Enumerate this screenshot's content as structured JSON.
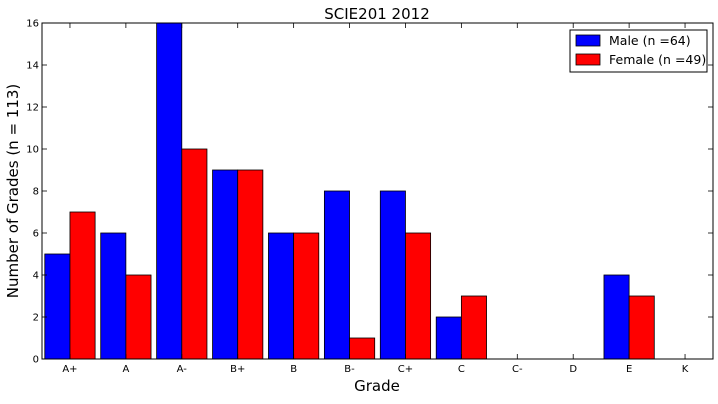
{
  "chart_data": {
    "type": "bar",
    "title": "SCIE201 2012",
    "xlabel": "Grade",
    "ylabel": "Number of Grades (n = 113)",
    "categories": [
      "A+",
      "A",
      "A-",
      "B+",
      "B",
      "B-",
      "C+",
      "C",
      "C-",
      "D",
      "E",
      "K"
    ],
    "series": [
      {
        "name": "Male (n =64)",
        "color": "#0000ff",
        "values": [
          5,
          6,
          16,
          9,
          6,
          8,
          8,
          2,
          0,
          0,
          4,
          0
        ]
      },
      {
        "name": "Female (n =49)",
        "color": "#ff0000",
        "values": [
          7,
          4,
          10,
          9,
          6,
          1,
          6,
          3,
          0,
          0,
          3,
          0
        ]
      }
    ],
    "ylim": [
      0,
      16
    ],
    "yticks": [
      0,
      2,
      4,
      6,
      8,
      10,
      12,
      14,
      16
    ],
    "grid": false,
    "legend": "top-right"
  }
}
